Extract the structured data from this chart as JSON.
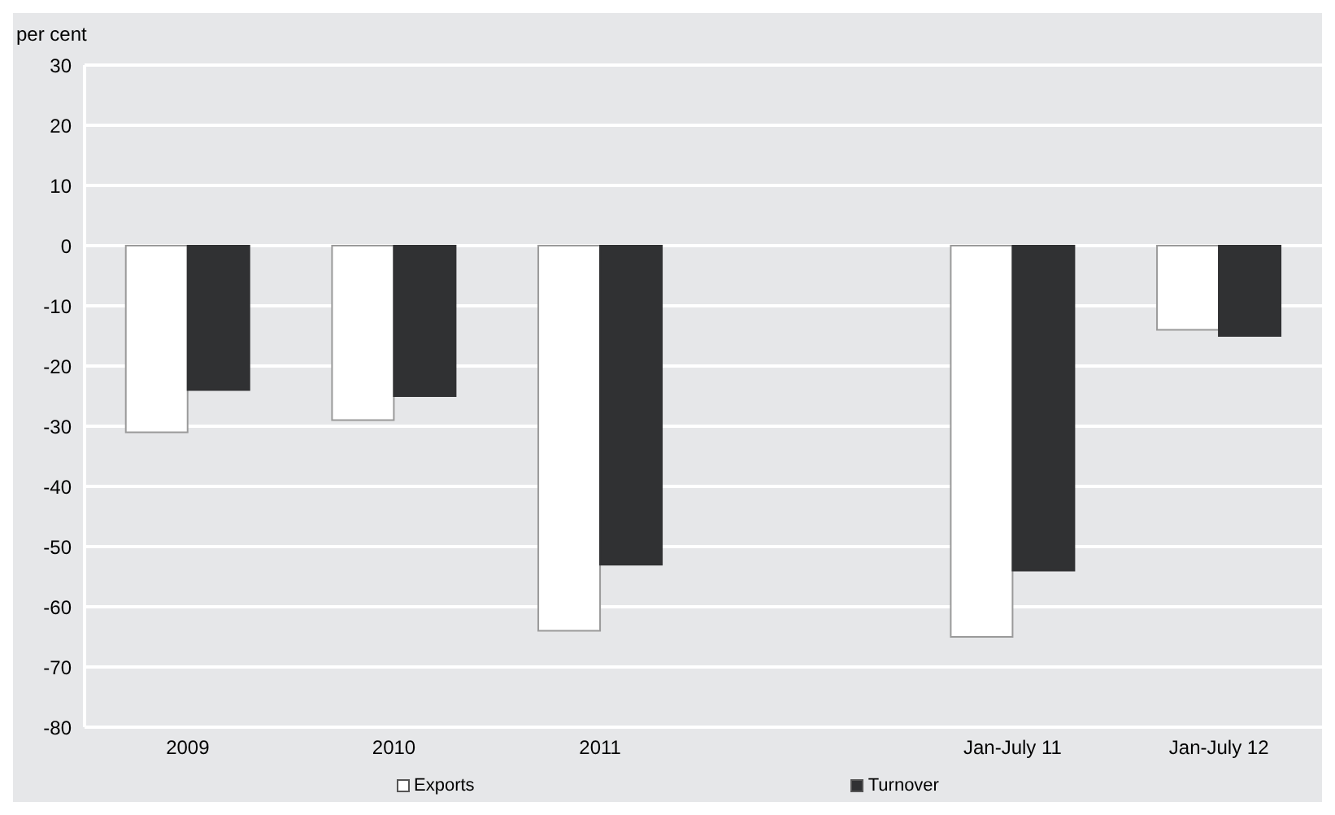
{
  "chart_data": {
    "type": "bar",
    "ylabel": "per cent",
    "categories": [
      "2009",
      "2010",
      "2011",
      null,
      "Jan-July 11",
      "Jan-July 12"
    ],
    "series": [
      {
        "name": "Exports",
        "color": "#ffffff",
        "values": [
          -31,
          -29,
          -64,
          null,
          -65,
          -14
        ]
      },
      {
        "name": "Turnover",
        "color": "#303133",
        "values": [
          -24,
          -25,
          -53,
          null,
          -54,
          -15
        ]
      }
    ],
    "ylim": [
      -80,
      30
    ],
    "yticks": [
      -80,
      -70,
      -60,
      -50,
      -40,
      -30,
      -20,
      -10,
      0,
      10,
      20,
      30
    ],
    "grid": "y",
    "legend": "bottom"
  }
}
